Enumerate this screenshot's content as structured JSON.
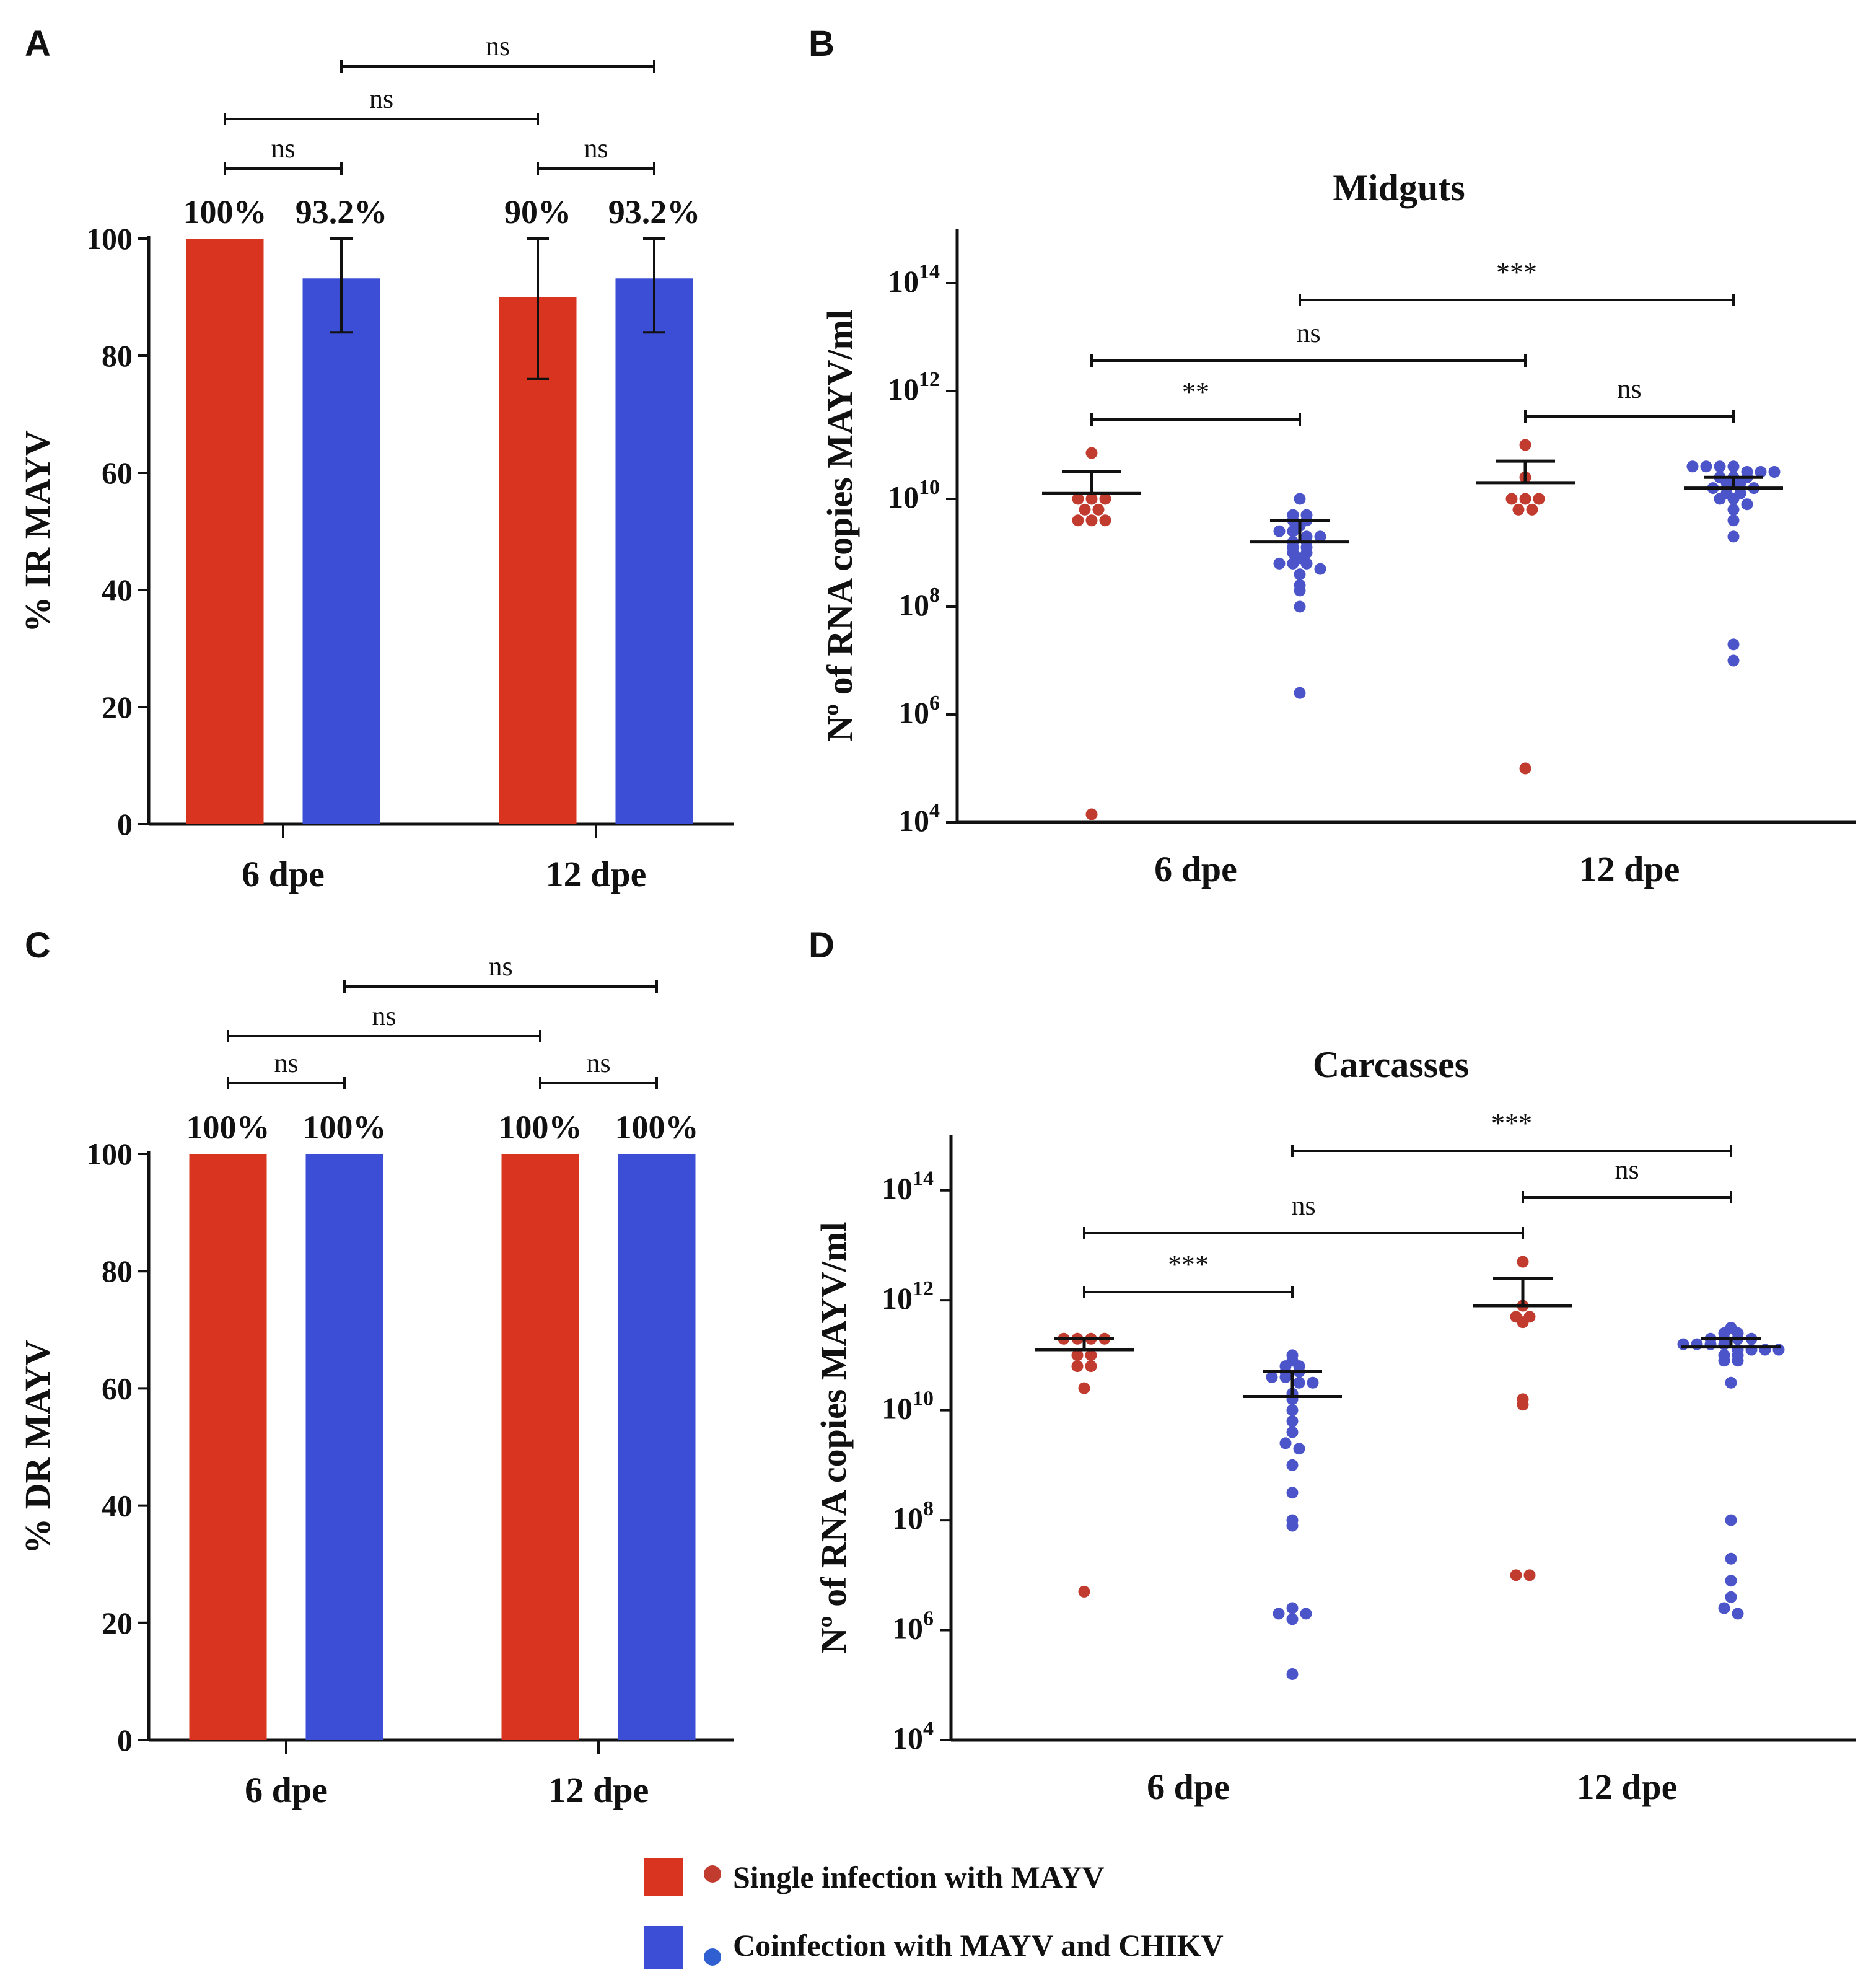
{
  "colors": {
    "single": "#d9341f",
    "coinf": "#3d4ed6",
    "scatter_single": "#c13b2f",
    "scatter_coinf": "#4b55c9",
    "axis": "#111111"
  },
  "panels": {
    "A": {
      "letter": "A"
    },
    "B": {
      "letter": "B"
    },
    "C": {
      "letter": "C"
    },
    "D": {
      "letter": "D"
    }
  },
  "legend": {
    "single": "Single infection with MAYV",
    "coinf": "Coinfection with MAYV and CHIKV"
  },
  "chart_data": [
    {
      "panel": "A",
      "type": "bar",
      "ylabel": "% IR MAYV",
      "categories": [
        "6 dpe",
        "12 dpe"
      ],
      "ylim": [
        0,
        100
      ],
      "yticks": [
        0,
        20,
        40,
        60,
        80,
        100
      ],
      "series": [
        {
          "name": "Single infection with MAYV",
          "values": [
            100,
            90
          ],
          "labels": [
            "100%",
            "90%"
          ],
          "err_low": [
            100,
            76
          ],
          "err_high": [
            100,
            100
          ]
        },
        {
          "name": "Coinfection with MAYV and CHIKV",
          "values": [
            93.2,
            93.2
          ],
          "labels": [
            "93.2%",
            "93.2%"
          ],
          "err_low": [
            84,
            84
          ],
          "err_high": [
            100,
            100
          ]
        }
      ],
      "comparisons": [
        {
          "label": "ns",
          "from": [
            0,
            0
          ],
          "to": [
            0,
            1
          ]
        },
        {
          "label": "ns",
          "from": [
            1,
            0
          ],
          "to": [
            1,
            1
          ]
        },
        {
          "label": "ns",
          "from": [
            0,
            0
          ],
          "to": [
            1,
            0
          ]
        },
        {
          "label": "ns",
          "from": [
            0,
            1
          ],
          "to": [
            1,
            1
          ]
        }
      ]
    },
    {
      "panel": "B",
      "type": "scatter",
      "title": "Midguts",
      "ylabel": "Nº of RNA copies MAYV/ml",
      "ylog": true,
      "yticks_exp": [
        4,
        6,
        8,
        10,
        12,
        14
      ],
      "ytick_base": "10",
      "ylim_exp": [
        4,
        15
      ],
      "categories": [
        "6 dpe",
        "12 dpe"
      ],
      "groups": [
        {
          "cat": 0,
          "series": 0,
          "mean_exp": 10.1,
          "sem_high_exp": 10.5,
          "points_exp": [
            10.85,
            10.0,
            10.0,
            10.0,
            9.8,
            9.8,
            9.6,
            9.6,
            9.6,
            4.15
          ]
        },
        {
          "cat": 0,
          "series": 1,
          "mean_exp": 9.2,
          "sem_high_exp": 9.6,
          "points_exp": [
            10.0,
            9.7,
            9.7,
            9.6,
            9.6,
            9.5,
            9.4,
            9.4,
            9.3,
            9.3,
            9.2,
            9.2,
            9.1,
            9.1,
            9.0,
            9.0,
            8.9,
            8.8,
            8.8,
            8.8,
            8.7,
            8.6,
            8.4,
            8.3,
            8.0,
            6.4
          ]
        },
        {
          "cat": 1,
          "series": 0,
          "mean_exp": 10.3,
          "sem_high_exp": 10.7,
          "points_exp": [
            11.0,
            10.4,
            10.0,
            10.0,
            10.0,
            9.8,
            9.8,
            5.0
          ]
        },
        {
          "cat": 1,
          "series": 1,
          "mean_exp": 10.2,
          "sem_high_exp": 10.4,
          "points_exp": [
            10.6,
            10.6,
            10.6,
            10.6,
            10.5,
            10.5,
            10.5,
            10.4,
            10.4,
            10.4,
            10.3,
            10.3,
            10.2,
            10.2,
            10.2,
            10.2,
            10.1,
            10.1,
            10.0,
            10.0,
            9.9,
            9.8,
            9.6,
            9.3,
            7.3,
            7.0
          ]
        }
      ],
      "comparisons": [
        {
          "label": "**",
          "from": [
            0,
            0
          ],
          "to": [
            0,
            1
          ]
        },
        {
          "label": "ns",
          "from": [
            1,
            0
          ],
          "to": [
            1,
            1
          ]
        },
        {
          "label": "ns",
          "from": [
            0,
            0
          ],
          "to": [
            1,
            0
          ]
        },
        {
          "label": "***",
          "from": [
            0,
            1
          ],
          "to": [
            1,
            1
          ]
        }
      ]
    },
    {
      "panel": "C",
      "type": "bar",
      "ylabel": "% DR MAYV",
      "categories": [
        "6 dpe",
        "12 dpe"
      ],
      "ylim": [
        0,
        100
      ],
      "yticks": [
        0,
        20,
        40,
        60,
        80,
        100
      ],
      "series": [
        {
          "name": "Single infection with MAYV",
          "values": [
            100,
            100
          ],
          "labels": [
            "100%",
            "100%"
          ]
        },
        {
          "name": "Coinfection with MAYV and CHIKV",
          "values": [
            100,
            100
          ],
          "labels": [
            "100%",
            "100%"
          ]
        }
      ],
      "comparisons": [
        {
          "label": "ns",
          "from": [
            0,
            0
          ],
          "to": [
            0,
            1
          ]
        },
        {
          "label": "ns",
          "from": [
            1,
            0
          ],
          "to": [
            1,
            1
          ]
        },
        {
          "label": "ns",
          "from": [
            0,
            0
          ],
          "to": [
            1,
            0
          ]
        },
        {
          "label": "ns",
          "from": [
            0,
            1
          ],
          "to": [
            1,
            1
          ]
        }
      ]
    },
    {
      "panel": "D",
      "type": "scatter",
      "title": "Carcasses",
      "ylabel": "Nº of RNA copies MAYV/ml",
      "ylog": true,
      "yticks_exp": [
        4,
        6,
        8,
        10,
        12,
        14
      ],
      "ytick_base": "10",
      "ylim_exp": [
        4,
        15
      ],
      "categories": [
        "6 dpe",
        "12 dpe"
      ],
      "groups": [
        {
          "cat": 0,
          "series": 0,
          "mean_exp": 11.1,
          "sem_high_exp": 11.3,
          "points_exp": [
            11.3,
            11.3,
            11.3,
            11.3,
            11.0,
            11.0,
            10.8,
            10.8,
            10.4,
            6.7
          ]
        },
        {
          "cat": 0,
          "series": 1,
          "mean_exp": 10.25,
          "sem_high_exp": 10.7,
          "points_exp": [
            11.0,
            10.9,
            10.8,
            10.8,
            10.7,
            10.7,
            10.6,
            10.6,
            10.5,
            10.5,
            10.3,
            10.2,
            10.0,
            9.8,
            9.6,
            9.4,
            9.3,
            9.0,
            8.5,
            8.0,
            7.9,
            6.3,
            6.4,
            6.3,
            6.2,
            5.2
          ]
        },
        {
          "cat": 1,
          "series": 0,
          "mean_exp": 11.9,
          "sem_high_exp": 12.4,
          "points_exp": [
            12.7,
            11.9,
            11.7,
            11.7,
            11.6,
            10.2,
            10.1,
            7.0,
            7.0
          ]
        },
        {
          "cat": 1,
          "series": 1,
          "mean_exp": 11.15,
          "sem_high_exp": 11.3,
          "points_exp": [
            11.5,
            11.4,
            11.4,
            11.3,
            11.3,
            11.3,
            11.3,
            11.2,
            11.2,
            11.2,
            11.2,
            11.1,
            11.1,
            11.1,
            11.1,
            11.0,
            11.0,
            10.9,
            10.9,
            10.5,
            8.0,
            7.3,
            6.9,
            6.6,
            6.4,
            6.3
          ]
        }
      ],
      "comparisons": [
        {
          "label": "***",
          "from": [
            0,
            0
          ],
          "to": [
            0,
            1
          ]
        },
        {
          "label": "ns",
          "from": [
            1,
            0
          ],
          "to": [
            1,
            1
          ]
        },
        {
          "label": "ns",
          "from": [
            0,
            0
          ],
          "to": [
            1,
            0
          ]
        },
        {
          "label": "***",
          "from": [
            0,
            1
          ],
          "to": [
            1,
            1
          ]
        }
      ]
    }
  ]
}
